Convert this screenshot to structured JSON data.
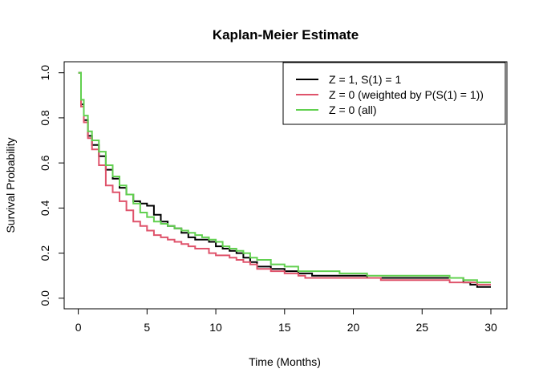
{
  "chart_data": {
    "type": "line",
    "title": "Kaplan-Meier Estimate",
    "xlabel": "Time (Months)",
    "ylabel": "Survival Probability",
    "xlim": [
      0,
      30
    ],
    "ylim": [
      0,
      1
    ],
    "xticks": [
      0,
      5,
      10,
      15,
      20,
      25,
      30
    ],
    "yticks": [
      0.0,
      0.2,
      0.4,
      0.6,
      0.8,
      1.0
    ],
    "ytick_labels": [
      "0.0",
      "0.2",
      "0.4",
      "0.6",
      "0.8",
      "1.0"
    ],
    "legend_position": "top-right",
    "grid": false,
    "series": [
      {
        "name": "Z = 1, S(1) = 1",
        "color": "#000000",
        "x": [
          0,
          0.2,
          0.4,
          0.7,
          1.0,
          1.5,
          2.0,
          2.5,
          3.0,
          3.5,
          4.0,
          4.5,
          5.0,
          5.5,
          6.0,
          6.5,
          7.0,
          7.5,
          8.0,
          8.5,
          9.0,
          9.5,
          10.0,
          10.5,
          11.0,
          11.5,
          12.0,
          12.5,
          13.0,
          14.0,
          15.0,
          16.0,
          17.0,
          18.0,
          19.0,
          20.0,
          21.0,
          22.0,
          23.0,
          24.0,
          25.0,
          26.0,
          27.0,
          28.0,
          28.5,
          29.0,
          30.0
        ],
        "y": [
          1.0,
          0.86,
          0.79,
          0.72,
          0.68,
          0.63,
          0.57,
          0.53,
          0.49,
          0.46,
          0.43,
          0.42,
          0.41,
          0.37,
          0.34,
          0.32,
          0.31,
          0.29,
          0.27,
          0.26,
          0.26,
          0.25,
          0.23,
          0.22,
          0.21,
          0.2,
          0.18,
          0.16,
          0.14,
          0.13,
          0.12,
          0.11,
          0.1,
          0.1,
          0.1,
          0.1,
          0.09,
          0.09,
          0.09,
          0.09,
          0.09,
          0.09,
          0.09,
          0.07,
          0.06,
          0.05,
          0.05
        ]
      },
      {
        "name": "Z = 0 (weighted by P(S(1) = 1))",
        "color": "#DF536B",
        "x": [
          0,
          0.2,
          0.4,
          0.7,
          1.0,
          1.5,
          2.0,
          2.5,
          3.0,
          3.5,
          4.0,
          4.5,
          5.0,
          5.5,
          6.0,
          6.5,
          7.0,
          7.5,
          8.0,
          8.5,
          9.0,
          9.5,
          10.0,
          10.5,
          11.0,
          11.5,
          12.0,
          12.5,
          13.0,
          14.0,
          15.0,
          16.0,
          16.5,
          17.0,
          18.0,
          19.0,
          20.0,
          21.0,
          22.0,
          23.0,
          24.0,
          25.0,
          26.0,
          27.0,
          28.0,
          29.0,
          30.0
        ],
        "y": [
          1.0,
          0.85,
          0.78,
          0.71,
          0.66,
          0.59,
          0.5,
          0.47,
          0.43,
          0.39,
          0.34,
          0.32,
          0.3,
          0.28,
          0.27,
          0.26,
          0.25,
          0.24,
          0.23,
          0.22,
          0.22,
          0.2,
          0.19,
          0.19,
          0.18,
          0.17,
          0.16,
          0.15,
          0.13,
          0.12,
          0.11,
          0.1,
          0.09,
          0.09,
          0.09,
          0.09,
          0.09,
          0.09,
          0.08,
          0.08,
          0.08,
          0.08,
          0.08,
          0.07,
          0.07,
          0.06,
          0.06
        ]
      },
      {
        "name": "Z = 0 (all)",
        "color": "#61D04F",
        "x": [
          0,
          0.2,
          0.4,
          0.7,
          1.0,
          1.5,
          2.0,
          2.5,
          3.0,
          3.5,
          4.0,
          4.5,
          5.0,
          5.5,
          6.0,
          6.5,
          7.0,
          7.5,
          8.0,
          8.5,
          9.0,
          9.5,
          10.0,
          10.5,
          11.0,
          11.5,
          12.0,
          12.5,
          13.0,
          14.0,
          15.0,
          16.0,
          17.0,
          18.0,
          19.0,
          20.0,
          21.0,
          22.0,
          23.0,
          24.0,
          25.0,
          26.0,
          27.0,
          28.0,
          29.0,
          30.0
        ],
        "y": [
          1.0,
          0.88,
          0.81,
          0.74,
          0.7,
          0.65,
          0.59,
          0.54,
          0.5,
          0.46,
          0.42,
          0.38,
          0.36,
          0.34,
          0.33,
          0.32,
          0.31,
          0.3,
          0.29,
          0.28,
          0.27,
          0.26,
          0.25,
          0.23,
          0.22,
          0.21,
          0.2,
          0.18,
          0.17,
          0.15,
          0.14,
          0.12,
          0.12,
          0.12,
          0.11,
          0.11,
          0.1,
          0.1,
          0.1,
          0.1,
          0.1,
          0.1,
          0.09,
          0.08,
          0.07,
          0.07
        ]
      }
    ]
  }
}
